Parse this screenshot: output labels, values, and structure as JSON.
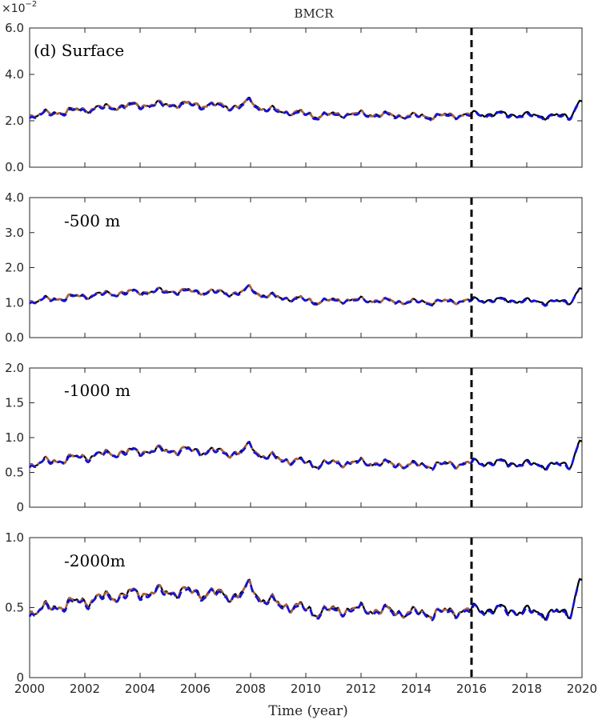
{
  "title": "BMCR",
  "xlabel": "Time (year)",
  "colors": {
    "observed": "#000000",
    "fit": "#b5652e",
    "predicted": "#1010e6",
    "split_line": "#000000",
    "axis": "#262626"
  },
  "chart_data": [
    {
      "type": "line",
      "panel_label": "(d) Surface",
      "exponent_base": "×10",
      "exponent_power": "−2",
      "xlim": [
        2000,
        2020
      ],
      "ylim": [
        0.0,
        6.0
      ],
      "yticks": [
        0.0,
        2.0,
        4.0,
        6.0
      ],
      "ytick_labels": [
        "0.0",
        "2.0",
        "4.0",
        "6.0"
      ],
      "split_year": 2016,
      "base": 2.0,
      "amp": 1.0,
      "tail_end": 2.85
    },
    {
      "type": "line",
      "panel_label": "-500 m",
      "xlim": [
        2000,
        2020
      ],
      "ylim": [
        0.0,
        4.0
      ],
      "yticks": [
        0.0,
        1.0,
        2.0,
        3.0,
        4.0
      ],
      "ytick_labels": [
        "0.0",
        "1.0",
        "2.0",
        "3.0",
        "4.0"
      ],
      "split_year": 2016,
      "base": 0.9,
      "amp": 0.6,
      "tail_end": 1.4
    },
    {
      "type": "line",
      "panel_label": "-1000 m",
      "xlim": [
        2000,
        2020
      ],
      "ylim": [
        0.0,
        2.0
      ],
      "yticks": [
        0.0,
        0.5,
        1.0,
        1.5,
        2.0
      ],
      "ytick_labels": [
        "0",
        "0.5",
        "1.0",
        "1.5",
        "2.0"
      ],
      "split_year": 2016,
      "base": 0.52,
      "amp": 0.42,
      "tail_end": 0.95
    },
    {
      "type": "line",
      "panel_label": "-2000m",
      "xlim": [
        2000,
        2020
      ],
      "ylim": [
        0.0,
        1.0
      ],
      "yticks": [
        0.0,
        0.5,
        1.0
      ],
      "ytick_labels": [
        "0",
        "0.5",
        "1.0"
      ],
      "split_year": 2016,
      "base": 0.4,
      "amp": 0.3,
      "tail_end": 0.7
    }
  ],
  "xticks": [
    2000,
    2002,
    2004,
    2006,
    2008,
    2010,
    2012,
    2014,
    2016,
    2018,
    2020
  ],
  "xtick_labels": [
    "2000",
    "2002",
    "2004",
    "2006",
    "2008",
    "2010",
    "2012",
    "2014",
    "2016",
    "2018",
    "2020"
  ]
}
